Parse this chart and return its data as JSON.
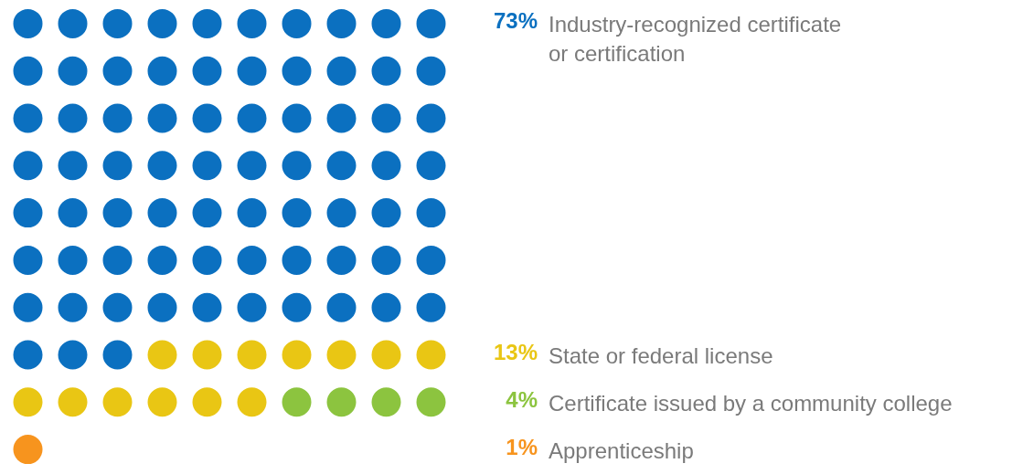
{
  "chart_data": {
    "type": "other",
    "categories": [
      "Industry-recognized certificate\nor certification",
      "State or federal license",
      "Certificate issued by a community college",
      "Apprenticeship"
    ],
    "values": [
      73,
      13,
      4,
      1
    ],
    "value_labels": [
      "73%",
      "13%",
      "4%",
      "1%"
    ],
    "colors": [
      "#0b70c0",
      "#e9c614",
      "#8cc43f",
      "#f7941e"
    ]
  }
}
